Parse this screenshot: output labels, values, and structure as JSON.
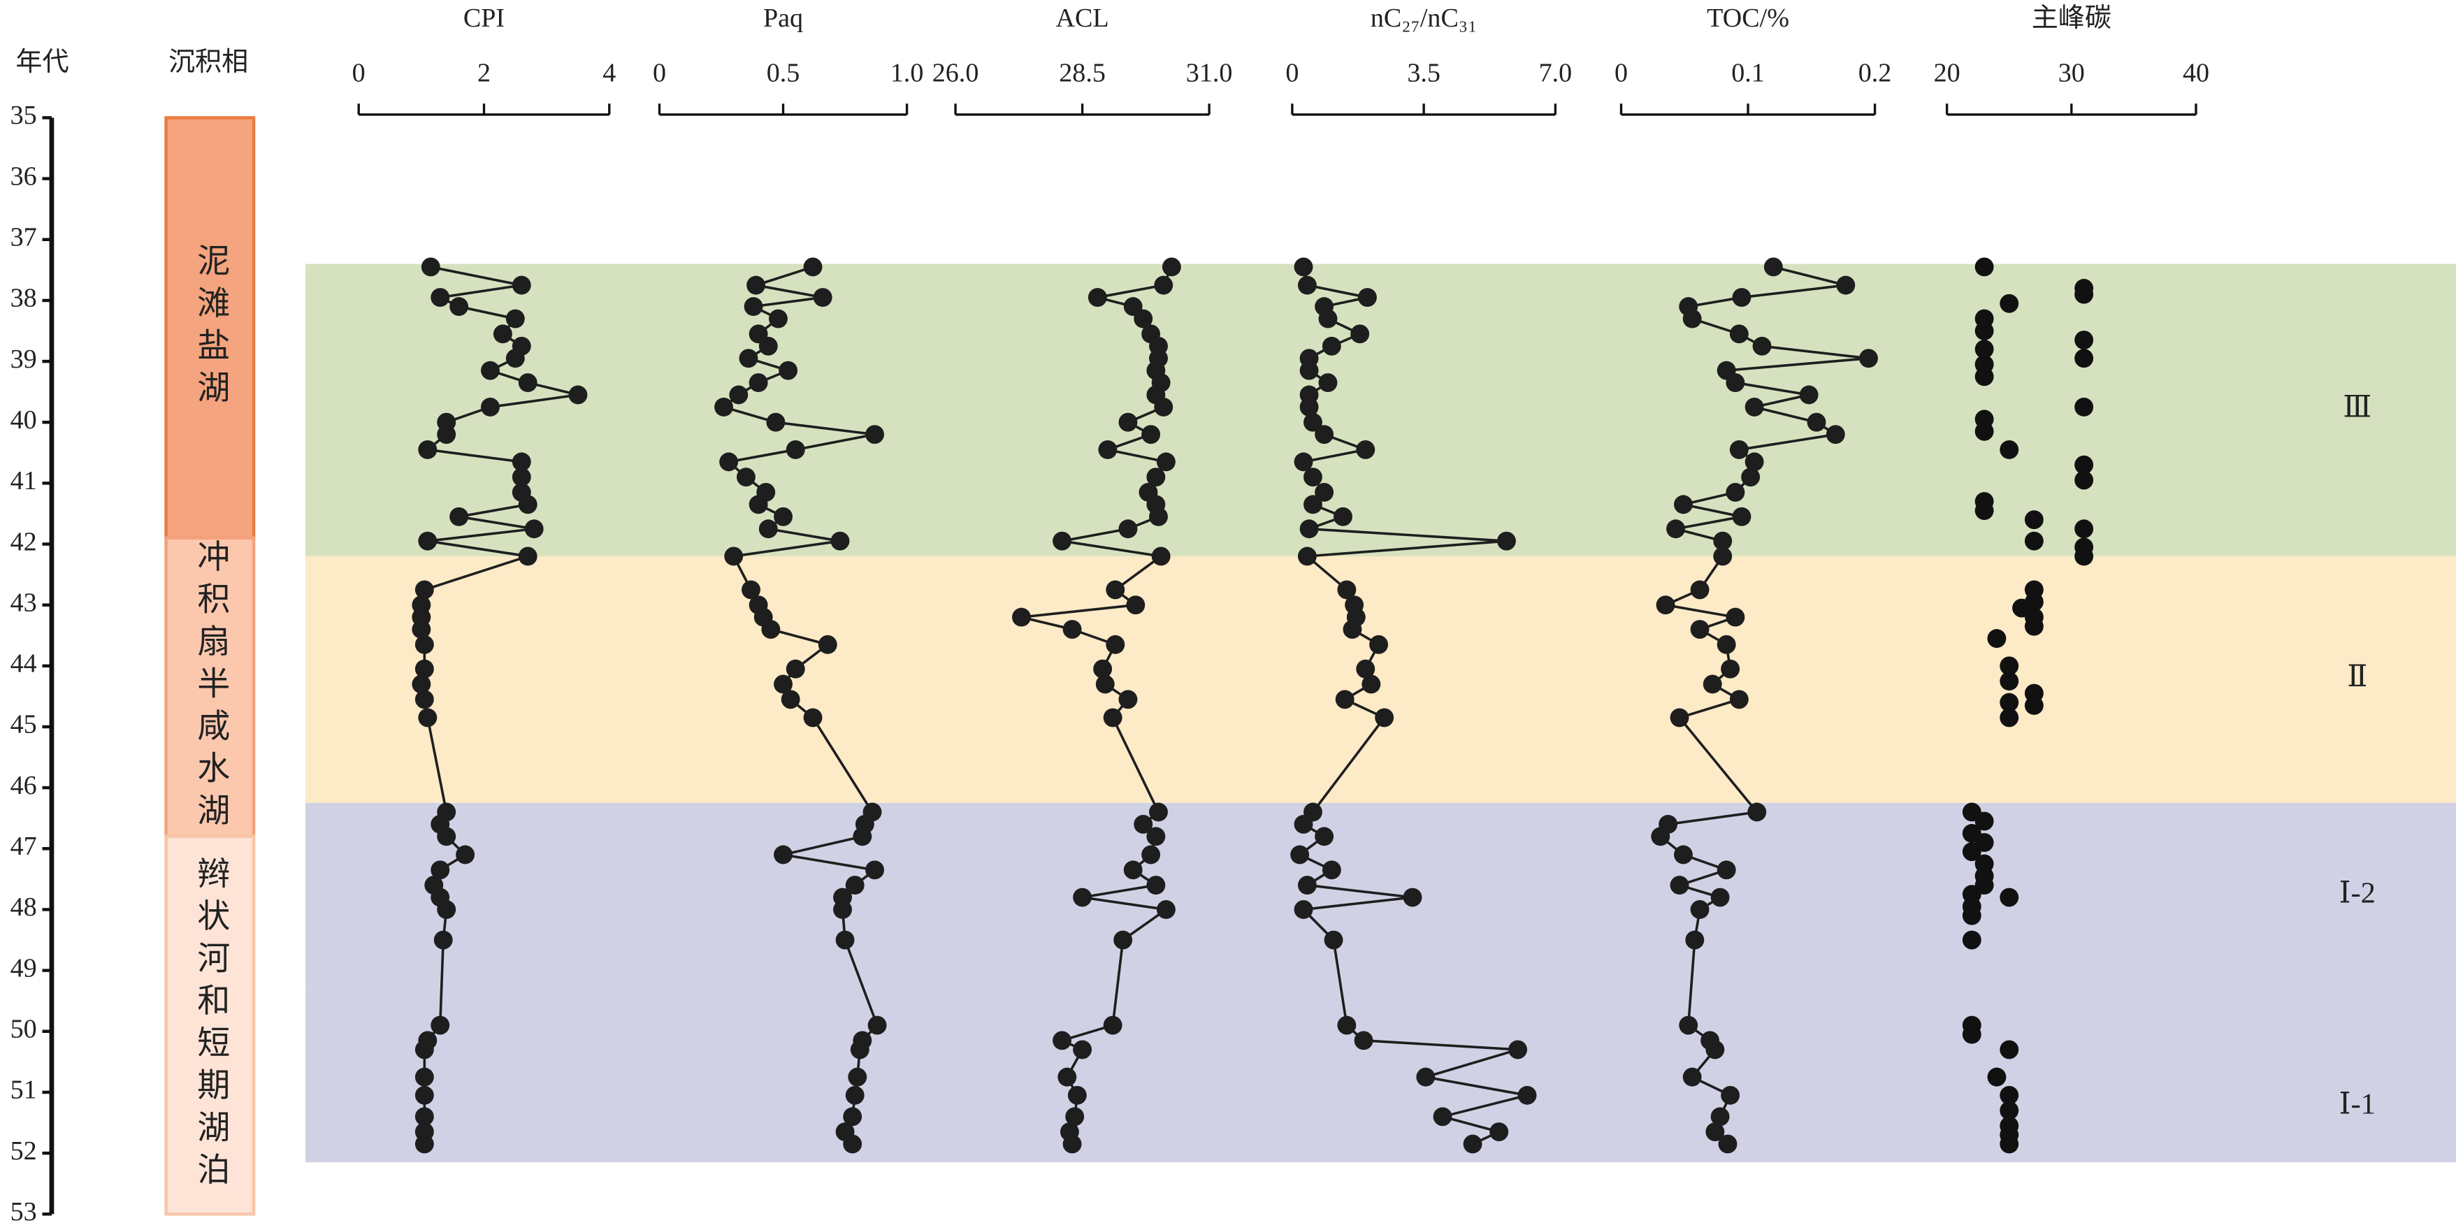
{
  "y_axis": {
    "title": "年代",
    "ylim": [
      35,
      53
    ],
    "yticks": [
      35,
      36,
      37,
      38,
      39,
      40,
      41,
      42,
      43,
      44,
      45,
      46,
      47,
      48,
      49,
      50,
      51,
      52,
      53
    ]
  },
  "facies": {
    "title": "沉积相",
    "items": [
      {
        "label": "泥滩盐湖",
        "range": [
          35,
          41.9
        ],
        "color": "#f4a47e",
        "border": "#e97b3f"
      },
      {
        "label": "冲积扇半咸水湖",
        "range": [
          41.9,
          46.8
        ],
        "color": "#fbc8ae",
        "border": "#f4a17c"
      },
      {
        "label": "辫状河和短期湖泊",
        "range": [
          46.8,
          53
        ],
        "color": "#fde4d7",
        "border": "#f8c5a9"
      }
    ]
  },
  "zones": [
    {
      "label": "Ⅲ",
      "range": [
        37.4,
        42.2
      ],
      "color": "#d6e2bf"
    },
    {
      "label": "Ⅱ",
      "range": [
        42.2,
        46.25
      ],
      "color": "#fdeac7"
    },
    {
      "label": "Ⅰ-2",
      "range": [
        46.25,
        49.3
      ],
      "color": "#d1d1e6"
    },
    {
      "label": "Ⅰ-1",
      "range": [
        49.3,
        52.15
      ],
      "color": "#d1d1e6"
    }
  ],
  "chart_data": [
    {
      "type": "line",
      "title": "CPI",
      "xlim": [
        0,
        4
      ],
      "xticks": [
        0,
        2,
        4
      ],
      "color": "#1e1e1e",
      "y": [
        37.45,
        37.75,
        37.95,
        38.1,
        38.3,
        38.55,
        38.75,
        38.95,
        39.15,
        39.35,
        39.55,
        39.75,
        40.0,
        40.2,
        40.45,
        40.65,
        40.9,
        41.15,
        41.35,
        41.55,
        41.75,
        41.95,
        42.2,
        42.75,
        43.0,
        43.2,
        43.4,
        43.65,
        44.05,
        44.3,
        44.55,
        44.85,
        46.4,
        46.6,
        46.8,
        47.1,
        47.35,
        47.6,
        47.8,
        48.0,
        48.5,
        49.9,
        50.15,
        50.3,
        50.75,
        51.05,
        51.4,
        51.65,
        51.85
      ],
      "values": [
        1.15,
        2.6,
        1.3,
        1.6,
        2.5,
        2.3,
        2.6,
        2.5,
        2.1,
        2.7,
        3.5,
        2.1,
        1.4,
        1.4,
        1.1,
        2.6,
        2.6,
        2.6,
        2.7,
        1.6,
        2.8,
        1.1,
        2.7,
        1.05,
        1.0,
        1.0,
        1.0,
        1.05,
        1.05,
        1.0,
        1.05,
        1.1,
        1.4,
        1.3,
        1.4,
        1.7,
        1.3,
        1.2,
        1.3,
        1.4,
        1.35,
        1.3,
        1.1,
        1.05,
        1.05,
        1.05,
        1.05,
        1.05,
        1.05
      ]
    },
    {
      "type": "line",
      "title": "Paq",
      "xlim": [
        0,
        1
      ],
      "xticks": [
        0,
        0.5,
        {
          "value": 1,
          "label": "1.0"
        }
      ],
      "color": "#1e1e1e",
      "y": [
        37.45,
        37.75,
        37.95,
        38.1,
        38.3,
        38.55,
        38.75,
        38.95,
        39.15,
        39.35,
        39.55,
        39.75,
        40.0,
        40.2,
        40.45,
        40.65,
        40.9,
        41.15,
        41.35,
        41.55,
        41.75,
        41.95,
        42.2,
        42.75,
        43.0,
        43.2,
        43.4,
        43.65,
        44.05,
        44.3,
        44.55,
        44.85,
        46.4,
        46.6,
        46.8,
        47.1,
        47.35,
        47.6,
        47.8,
        48.0,
        48.5,
        49.9,
        50.15,
        50.3,
        50.75,
        51.05,
        51.4,
        51.65,
        51.85
      ],
      "values": [
        0.62,
        0.39,
        0.66,
        0.38,
        0.48,
        0.4,
        0.44,
        0.36,
        0.52,
        0.4,
        0.32,
        0.26,
        0.47,
        0.87,
        0.55,
        0.28,
        0.35,
        0.43,
        0.4,
        0.5,
        0.44,
        0.73,
        0.3,
        0.37,
        0.4,
        0.42,
        0.45,
        0.68,
        0.55,
        0.5,
        0.53,
        0.62,
        0.86,
        0.83,
        0.82,
        0.5,
        0.87,
        0.79,
        0.74,
        0.74,
        0.75,
        0.88,
        0.82,
        0.81,
        0.8,
        0.79,
        0.78,
        0.75,
        0.78
      ]
    },
    {
      "type": "line",
      "title": "ACL",
      "xlim": [
        26,
        31
      ],
      "xticks": [
        {
          "value": 26,
          "label": "26.0"
        },
        28.5,
        {
          "value": 31,
          "label": "31.0"
        }
      ],
      "color": "#1e1e1e",
      "y": [
        37.45,
        37.75,
        37.95,
        38.1,
        38.3,
        38.55,
        38.75,
        38.95,
        39.15,
        39.35,
        39.55,
        39.75,
        40.0,
        40.2,
        40.45,
        40.65,
        40.9,
        41.15,
        41.35,
        41.55,
        41.75,
        41.95,
        42.2,
        42.75,
        43.0,
        43.2,
        43.4,
        43.65,
        44.05,
        44.3,
        44.55,
        44.85,
        46.4,
        46.6,
        46.8,
        47.1,
        47.35,
        47.6,
        47.8,
        48.0,
        48.5,
        49.9,
        50.15,
        50.3,
        50.75,
        51.05,
        51.4,
        51.65,
        51.85
      ],
      "values": [
        30.26,
        30.1,
        28.8,
        29.5,
        29.7,
        29.85,
        30.0,
        30.0,
        29.95,
        30.05,
        29.95,
        30.1,
        29.4,
        29.85,
        29.0,
        30.15,
        29.95,
        29.8,
        29.95,
        30.0,
        29.4,
        28.1,
        30.05,
        29.15,
        29.55,
        27.3,
        28.3,
        29.15,
        28.9,
        28.95,
        29.4,
        29.1,
        30.0,
        29.7,
        29.95,
        29.85,
        29.5,
        29.95,
        28.5,
        30.15,
        29.3,
        29.1,
        28.1,
        28.5,
        28.2,
        28.4,
        28.35,
        28.25,
        28.3
      ]
    },
    {
      "type": "line",
      "title": "nC₂₇/nC₃₁",
      "xlim": [
        0,
        7
      ],
      "xticks": [
        0,
        3.5,
        {
          "value": 7,
          "label": "7.0"
        }
      ],
      "color": "#1e1e1e",
      "y": [
        37.45,
        37.75,
        37.95,
        38.1,
        38.3,
        38.55,
        38.75,
        38.95,
        39.15,
        39.35,
        39.55,
        39.75,
        40.0,
        40.2,
        40.45,
        40.65,
        40.9,
        41.15,
        41.35,
        41.55,
        41.75,
        41.95,
        42.2,
        42.75,
        43.0,
        43.2,
        43.4,
        43.65,
        44.05,
        44.3,
        44.55,
        44.85,
        46.4,
        46.6,
        46.8,
        47.1,
        47.35,
        47.6,
        47.8,
        48.0,
        48.5,
        49.9,
        50.15,
        50.3,
        50.75,
        51.05,
        51.4,
        51.65,
        51.85
      ],
      "values": [
        0.3,
        0.4,
        2.0,
        0.85,
        0.95,
        1.8,
        1.05,
        0.45,
        0.45,
        0.95,
        0.45,
        0.45,
        0.55,
        0.85,
        1.95,
        0.3,
        0.55,
        0.85,
        0.55,
        1.35,
        0.45,
        5.7,
        0.4,
        1.45,
        1.65,
        1.7,
        1.6,
        2.3,
        1.95,
        2.1,
        1.4,
        2.45,
        0.55,
        0.3,
        0.85,
        0.2,
        1.05,
        0.4,
        3.2,
        0.3,
        1.1,
        1.45,
        1.9,
        6.0,
        3.55,
        6.25,
        4.0,
        5.5,
        4.8
      ]
    },
    {
      "type": "line",
      "title": "TOC/%",
      "xlim": [
        0,
        0.2
      ],
      "xticks": [
        0,
        0.1,
        0.2
      ],
      "color": "#1e1e1e",
      "y": [
        37.45,
        37.75,
        37.95,
        38.1,
        38.3,
        38.55,
        38.75,
        38.95,
        39.15,
        39.35,
        39.55,
        39.75,
        40.0,
        40.2,
        40.45,
        40.65,
        40.9,
        41.15,
        41.35,
        41.55,
        41.75,
        41.95,
        42.2,
        42.75,
        43.0,
        43.2,
        43.4,
        43.65,
        44.05,
        44.3,
        44.55,
        44.85,
        46.4,
        46.6,
        46.8,
        47.1,
        47.35,
        47.6,
        47.8,
        48.0,
        48.5,
        49.9,
        50.15,
        50.3,
        50.75,
        51.05,
        51.4,
        51.65,
        51.85
      ],
      "values": [
        0.12,
        0.177,
        0.095,
        0.053,
        0.056,
        0.093,
        0.111,
        0.195,
        0.083,
        0.09,
        0.148,
        0.105,
        0.154,
        0.169,
        0.093,
        0.105,
        0.102,
        0.09,
        0.049,
        0.095,
        0.043,
        0.08,
        0.08,
        0.062,
        0.035,
        0.09,
        0.062,
        0.083,
        0.086,
        0.072,
        0.093,
        0.046,
        0.107,
        0.037,
        0.031,
        0.049,
        0.083,
        0.046,
        0.078,
        0.062,
        0.058,
        0.053,
        0.07,
        0.074,
        0.056,
        0.086,
        0.078,
        0.074,
        0.084
      ]
    },
    {
      "type": "scatter",
      "title": "主峰碳",
      "xlim": [
        20,
        40
      ],
      "xticks": [
        20,
        30,
        40
      ],
      "color": "#111111",
      "y": [
        37.45,
        37.8,
        37.9,
        38.05,
        38.3,
        38.5,
        38.65,
        38.8,
        38.95,
        39.05,
        39.25,
        39.75,
        39.95,
        40.15,
        40.45,
        40.7,
        40.95,
        41.3,
        41.45,
        41.6,
        41.75,
        41.95,
        42.05,
        42.2,
        42.75,
        42.95,
        43.05,
        43.2,
        43.35,
        43.55,
        44.0,
        44.25,
        44.45,
        44.6,
        44.65,
        44.85,
        46.4,
        46.55,
        46.75,
        46.9,
        47.05,
        47.25,
        47.45,
        47.6,
        47.75,
        47.8,
        47.95,
        48.1,
        48.5,
        49.9,
        50.05,
        50.3,
        50.75,
        51.05,
        51.3,
        51.55,
        51.7,
        51.85
      ],
      "values": [
        23,
        31,
        31,
        25,
        23,
        23,
        31,
        23,
        31,
        23,
        23,
        31,
        23,
        23,
        25,
        31,
        31,
        23,
        23,
        27,
        31,
        27,
        31,
        31,
        27,
        27,
        26,
        27,
        27,
        24,
        25,
        25,
        27,
        25,
        27,
        25,
        22,
        23,
        22,
        23,
        22,
        23,
        23,
        23,
        22,
        25,
        22,
        22,
        22,
        22,
        22,
        25,
        24,
        25,
        25,
        25,
        25,
        25
      ]
    }
  ]
}
